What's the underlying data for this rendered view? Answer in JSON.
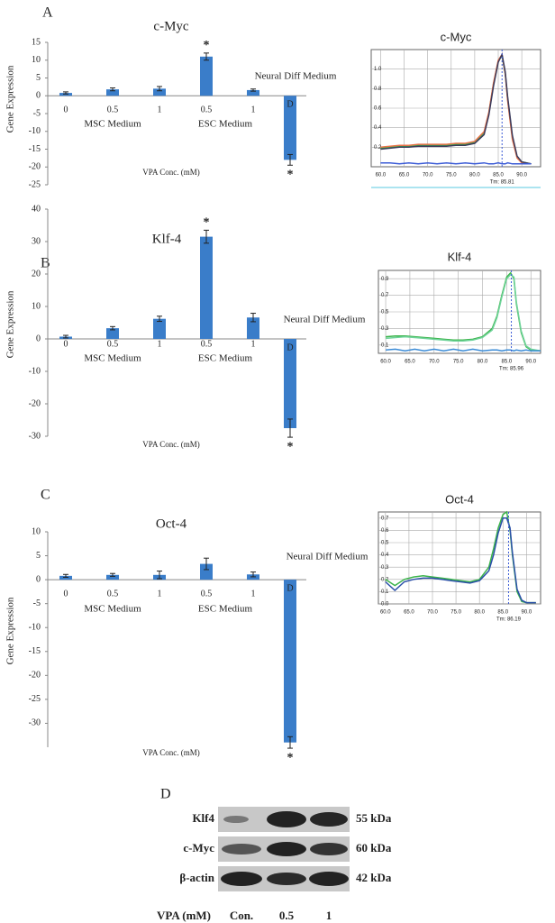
{
  "chart_data": [
    {
      "type": "bar",
      "panel_label": "A",
      "title": "c-Myc",
      "y_label": "Gene Expression",
      "x_label": "VPA Conc. (mM)",
      "categories": [
        "0",
        "0.5",
        "1",
        "0.5",
        "1",
        "D"
      ],
      "values": [
        0.8,
        1.8,
        2.0,
        11,
        1.6,
        -18
      ],
      "errors": [
        0.3,
        0.4,
        0.6,
        1.0,
        0.3,
        1.5
      ],
      "markers": [
        null,
        null,
        null,
        "*",
        null,
        "*"
      ],
      "group_labels": [
        "MSC Medium",
        "ESC Medium",
        "Neural Diff Medium"
      ],
      "color": "#3a7dc9",
      "ylim": [
        -25,
        15
      ],
      "yticks": [
        15,
        10,
        5,
        0,
        -5,
        -10,
        -15,
        -20,
        -25
      ]
    },
    {
      "type": "line",
      "title": "c-Myc",
      "x": [
        60,
        62,
        64,
        66,
        68,
        70,
        72,
        74,
        76,
        78,
        80,
        82,
        83,
        84,
        85,
        85.8,
        86.5,
        87,
        88,
        89,
        90,
        92
      ],
      "series": [
        {
          "color": "#3cb44b",
          "values": [
            0.19,
            0.2,
            0.21,
            0.21,
            0.22,
            0.22,
            0.22,
            0.22,
            0.23,
            0.23,
            0.25,
            0.35,
            0.55,
            0.85,
            1.08,
            1.14,
            0.95,
            0.7,
            0.3,
            0.1,
            0.05,
            0.03
          ]
        },
        {
          "color": "#e8734a",
          "values": [
            0.2,
            0.21,
            0.22,
            0.22,
            0.23,
            0.23,
            0.23,
            0.23,
            0.24,
            0.24,
            0.26,
            0.36,
            0.56,
            0.86,
            1.09,
            1.15,
            0.95,
            0.68,
            0.28,
            0.09,
            0.04,
            0.03
          ]
        },
        {
          "color": "#3a3a5c",
          "values": [
            0.18,
            0.19,
            0.2,
            0.2,
            0.21,
            0.21,
            0.21,
            0.21,
            0.22,
            0.22,
            0.24,
            0.33,
            0.53,
            0.83,
            1.07,
            1.15,
            0.97,
            0.72,
            0.32,
            0.11,
            0.05,
            0.03
          ]
        },
        {
          "color": "#3b5bd6",
          "values": [
            0.04,
            0.04,
            0.03,
            0.04,
            0.03,
            0.04,
            0.03,
            0.04,
            0.03,
            0.04,
            0.03,
            0.04,
            0.03,
            0.03,
            0.04,
            0.03,
            0.03,
            0.04,
            0.03,
            0.03,
            0.03,
            0.03
          ]
        }
      ],
      "xlim": [
        58,
        94
      ],
      "ylim": [
        0,
        1.2
      ],
      "xticks": [
        {
          "value": 60,
          "label": "60.0"
        },
        {
          "value": 65,
          "label": "65.0"
        },
        {
          "value": 70,
          "label": "70.0"
        },
        {
          "value": 75,
          "label": "75.0"
        },
        {
          "value": 80,
          "label": "80.0"
        },
        {
          "value": 85,
          "label": "85.0"
        },
        {
          "value": 90,
          "label": "90.0"
        }
      ],
      "yticks": [
        0.2,
        0.4,
        0.6,
        0.8,
        {
          "value": 1,
          "label": "1.0"
        }
      ],
      "grid": true,
      "tm": {
        "value": 85.81,
        "label": "Tm: 85.81"
      }
    },
    {
      "type": "bar",
      "panel_label": "B",
      "title": "Klf-4",
      "y_label": "Gene Expression",
      "x_label": "VPA Conc. (mM)",
      "categories": [
        "0",
        "0.5",
        "1",
        "0.5",
        "1",
        "D"
      ],
      "values": [
        0.7,
        3.3,
        6.2,
        31.5,
        6.6,
        -27.5
      ],
      "errors": [
        0.4,
        0.5,
        0.8,
        2,
        1.3,
        2.8
      ],
      "markers": [
        null,
        null,
        null,
        "*",
        null,
        "*"
      ],
      "group_labels": [
        "MSC Medium",
        "ESC Medium",
        "Neural Diff Medium"
      ],
      "color": "#3a7dc9",
      "ylim": [
        -30,
        40
      ],
      "yticks": [
        40,
        30,
        20,
        10,
        0,
        -10,
        -20,
        -30
      ]
    },
    {
      "type": "line",
      "title": "Klf-4",
      "x": [
        60,
        62,
        64,
        66,
        68,
        70,
        72,
        74,
        76,
        78,
        80,
        82,
        83,
        84,
        85,
        85.8,
        86.5,
        87,
        88,
        89,
        90,
        92
      ],
      "series": [
        {
          "color": "#3cb44b",
          "values": [
            0.2,
            0.21,
            0.21,
            0.2,
            0.19,
            0.18,
            0.17,
            0.16,
            0.16,
            0.17,
            0.2,
            0.3,
            0.45,
            0.7,
            0.92,
            0.97,
            0.9,
            0.6,
            0.25,
            0.08,
            0.04,
            0.03
          ]
        },
        {
          "color": "#6fd39a",
          "values": [
            0.18,
            0.19,
            0.2,
            0.19,
            0.18,
            0.17,
            0.16,
            0.15,
            0.15,
            0.16,
            0.19,
            0.28,
            0.43,
            0.68,
            0.9,
            0.95,
            0.92,
            0.62,
            0.27,
            0.09,
            0.05,
            0.03
          ]
        },
        {
          "color": "#3b8bd6",
          "values": [
            0.04,
            0.05,
            0.03,
            0.05,
            0.03,
            0.05,
            0.03,
            0.05,
            0.03,
            0.05,
            0.03,
            0.04,
            0.04,
            0.03,
            0.04,
            0.04,
            0.03,
            0.04,
            0.03,
            0.04,
            0.03,
            0.03
          ]
        }
      ],
      "xlim": [
        58.5,
        92
      ],
      "ylim": [
        0,
        1
      ],
      "xticks": [
        {
          "value": 60,
          "label": "60.0"
        },
        {
          "value": 65,
          "label": "65.0"
        },
        {
          "value": 70,
          "label": "70.0"
        },
        {
          "value": 75,
          "label": "75.0"
        },
        {
          "value": 80,
          "label": "80.0"
        },
        {
          "value": 85,
          "label": "85.0"
        },
        {
          "value": 90,
          "label": "90.0"
        }
      ],
      "yticks": [
        0.1,
        0.3,
        0.5,
        0.7,
        0.9
      ],
      "grid": true,
      "tm": {
        "value": 85.96,
        "label": "Tm: 85.96"
      }
    },
    {
      "type": "bar",
      "panel_label": "C",
      "title": "Oct-4",
      "y_label": "Gene Expression",
      "x_label": "VPA Conc. (mM)",
      "categories": [
        "0",
        "0.5",
        "1",
        "0.5",
        "1",
        "D"
      ],
      "values": [
        0.8,
        1.0,
        1.0,
        3.3,
        1.1,
        -34
      ],
      "errors": [
        0.3,
        0.3,
        0.8,
        1.2,
        0.5,
        1.2
      ],
      "markers": [
        null,
        null,
        null,
        null,
        null,
        "*"
      ],
      "group_labels": [
        "MSC Medium",
        "ESC Medium",
        "Neural Diff Medium"
      ],
      "color": "#3a7dc9",
      "ylim": [
        -35,
        10
      ],
      "yticks": [
        10,
        5,
        0,
        -5,
        -10,
        -15,
        -20,
        -25,
        -30
      ]
    },
    {
      "type": "line",
      "title": "Oct-4",
      "x": [
        60,
        62,
        64,
        66,
        68,
        70,
        72,
        74,
        76,
        78,
        80,
        82,
        83,
        84,
        85,
        85.8,
        86.5,
        87,
        88,
        89,
        90,
        92
      ],
      "series": [
        {
          "color": "#3cb44b",
          "values": [
            0.2,
            0.15,
            0.2,
            0.22,
            0.23,
            0.22,
            0.21,
            0.2,
            0.19,
            0.18,
            0.2,
            0.3,
            0.45,
            0.62,
            0.73,
            0.75,
            0.6,
            0.4,
            0.1,
            0.02,
            0.01,
            0.01
          ]
        },
        {
          "color": "#2a4fa8",
          "values": [
            0.18,
            0.11,
            0.18,
            0.2,
            0.21,
            0.21,
            0.2,
            0.19,
            0.18,
            0.17,
            0.19,
            0.27,
            0.4,
            0.58,
            0.7,
            0.7,
            0.62,
            0.42,
            0.12,
            0.03,
            0.01,
            0.01
          ]
        }
      ],
      "xlim": [
        58.5,
        93
      ],
      "ylim": [
        0,
        0.75
      ],
      "xticks": [
        {
          "value": 60,
          "label": "60.0"
        },
        {
          "value": 65,
          "label": "65.0"
        },
        {
          "value": 70,
          "label": "70.0"
        },
        {
          "value": 75,
          "label": "75.0"
        },
        {
          "value": 80,
          "label": "80.0"
        },
        {
          "value": 85,
          "label": "85.0"
        },
        {
          "value": 90,
          "label": "90.0"
        }
      ],
      "yticks": [
        {
          "value": 0,
          "label": "0.0"
        },
        0.1,
        0.2,
        0.3,
        0.4,
        0.5,
        0.6,
        0.7
      ],
      "grid": true,
      "tm": {
        "value": 86.19,
        "label": "Tm: 86.19"
      }
    }
  ],
  "blot": {
    "panel_label": "D",
    "rows": [
      {
        "protein": "Klf4",
        "size": "55 kDa"
      },
      {
        "protein": "c-Myc",
        "size": "60 kDa"
      },
      {
        "protein": "β-actin",
        "size": "42 kDa"
      }
    ],
    "x_title": "VPA (mM)",
    "lanes": [
      "Con.",
      "0.5",
      "1"
    ]
  }
}
